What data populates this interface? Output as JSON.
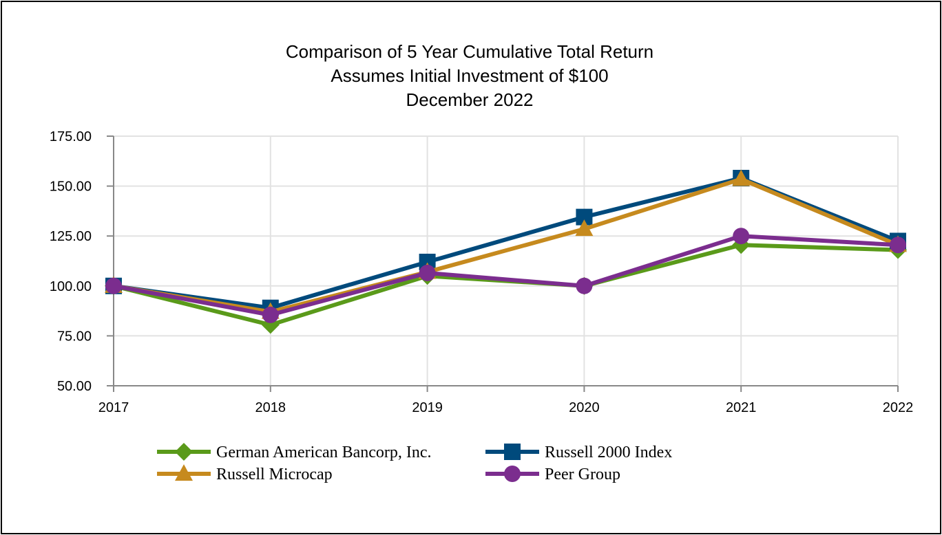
{
  "chart_data": {
    "type": "line",
    "title_lines": [
      "Comparison of 5 Year Cumulative Total Return",
      "Assumes Initial Investment of $100",
      "December 2022"
    ],
    "xlabel": "",
    "ylabel": "",
    "categories": [
      "2017",
      "2018",
      "2019",
      "2020",
      "2021",
      "2022"
    ],
    "y_ticks": [
      "50.00",
      "75.00",
      "100.00",
      "125.00",
      "150.00",
      "175.00"
    ],
    "ylim": [
      50,
      175
    ],
    "grid": true,
    "legend_position": "bottom",
    "series": [
      {
        "name": "German American Bancorp, Inc.",
        "color": "#5a9a1a",
        "marker": "diamond",
        "values": [
          100.0,
          80.5,
          105.0,
          100.0,
          120.5,
          118.0
        ]
      },
      {
        "name": "Russell 2000 Index",
        "color": "#004a7c",
        "marker": "square",
        "values": [
          100.0,
          89.0,
          112.0,
          134.5,
          154.0,
          122.5
        ]
      },
      {
        "name": "Russell Microcap",
        "color": "#c68a1e",
        "marker": "triangle",
        "values": [
          100.0,
          87.0,
          107.0,
          128.5,
          153.5,
          120.5
        ]
      },
      {
        "name": "Peer Group",
        "color": "#7b2d8e",
        "marker": "circle",
        "values": [
          100.0,
          85.5,
          106.5,
          100.0,
          125.0,
          120.5
        ]
      }
    ]
  }
}
